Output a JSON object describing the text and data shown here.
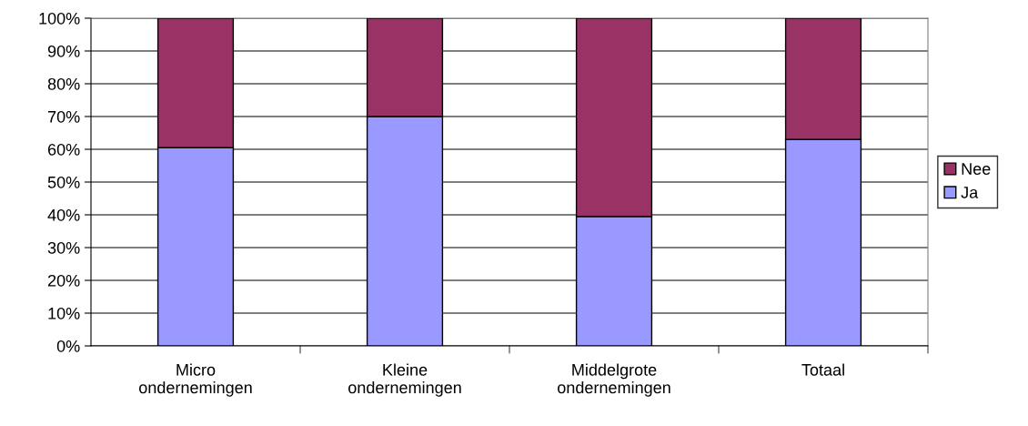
{
  "chart_data": {
    "type": "bar",
    "stacked": true,
    "categories": [
      "Micro\nondernemingen",
      "Kleine\nondernemingen",
      "Middelgrote\nondernemingen",
      "Totaal"
    ],
    "series": [
      {
        "name": "Ja",
        "color": "#9999ff",
        "values": [
          60.5,
          70,
          39.5,
          63
        ]
      },
      {
        "name": "Nee",
        "color": "#993366",
        "values": [
          39.5,
          30,
          60.5,
          37
        ]
      }
    ],
    "ylim": [
      0,
      100
    ],
    "yticks": [
      {
        "value": 0,
        "label": "0%"
      },
      {
        "value": 10,
        "label": "10%"
      },
      {
        "value": 20,
        "label": "20%"
      },
      {
        "value": 30,
        "label": "30%"
      },
      {
        "value": 40,
        "label": "40%"
      },
      {
        "value": 50,
        "label": "50%"
      },
      {
        "value": 60,
        "label": "60%"
      },
      {
        "value": 70,
        "label": "70%"
      },
      {
        "value": 80,
        "label": "80%"
      },
      {
        "value": 90,
        "label": "90%"
      },
      {
        "value": 100,
        "label": "100%"
      }
    ],
    "grid": "y",
    "legend": "right"
  }
}
